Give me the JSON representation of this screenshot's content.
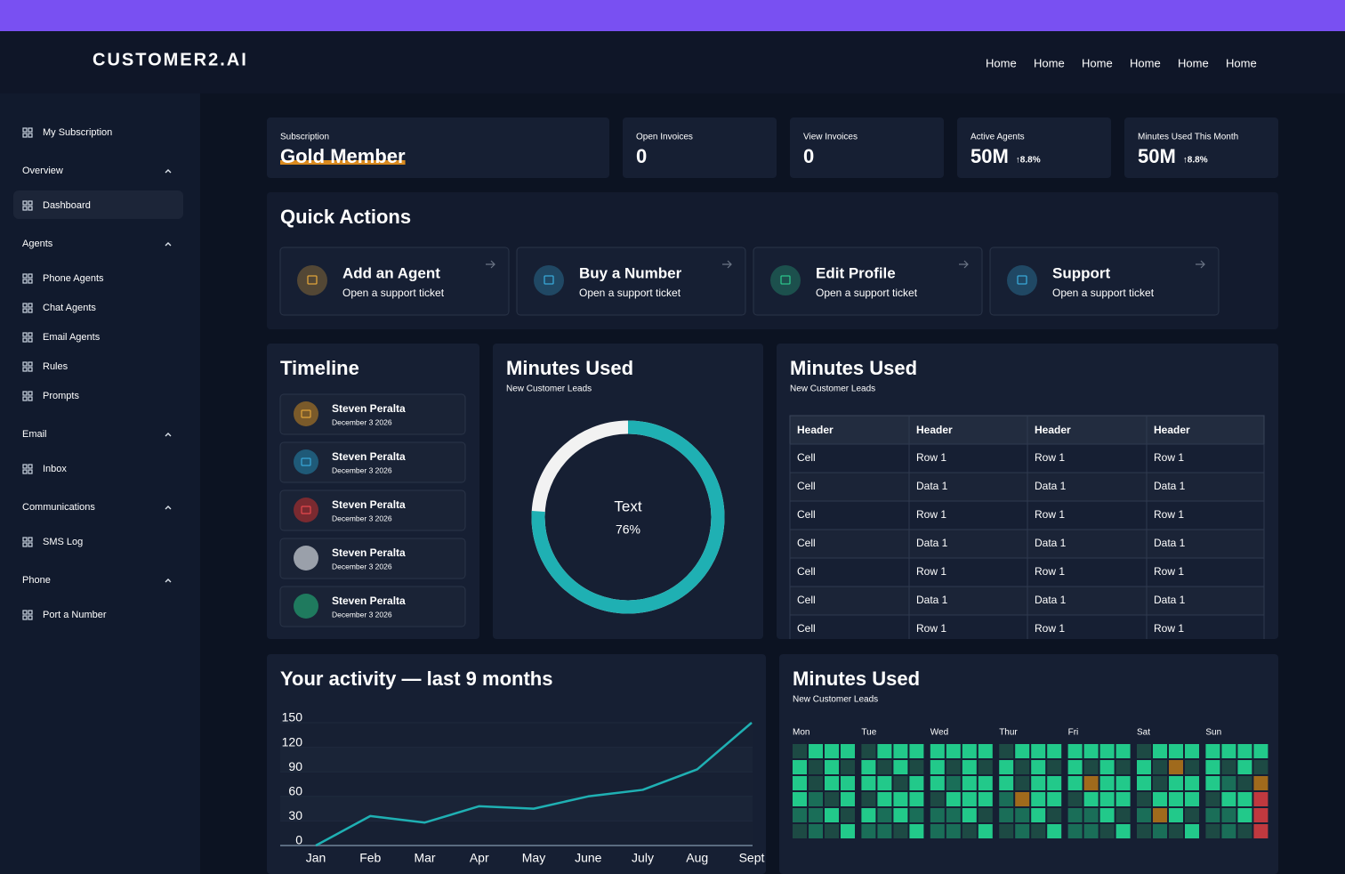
{
  "header": {
    "logo": "CUSTOMER2.AI",
    "nav": [
      "Home",
      "Home",
      "Home",
      "Home",
      "Home",
      "Home"
    ]
  },
  "sidebar": {
    "items": [
      {
        "label": "My Subscription",
        "kind": "link"
      },
      {
        "label": "Overview",
        "kind": "section"
      },
      {
        "label": "Dashboard",
        "kind": "link",
        "active": true
      },
      {
        "label": "Agents",
        "kind": "section"
      },
      {
        "label": "Phone Agents",
        "kind": "link"
      },
      {
        "label": "Chat Agents",
        "kind": "link"
      },
      {
        "label": "Email Agents",
        "kind": "link"
      },
      {
        "label": "Rules",
        "kind": "link"
      },
      {
        "label": "Prompts",
        "kind": "link"
      },
      {
        "label": "Email",
        "kind": "section"
      },
      {
        "label": "Inbox",
        "kind": "link"
      },
      {
        "label": "Communications",
        "kind": "section"
      },
      {
        "label": "SMS Log",
        "kind": "link"
      },
      {
        "label": "Phone",
        "kind": "section"
      },
      {
        "label": "Port a Number",
        "kind": "link"
      }
    ]
  },
  "stats": [
    {
      "label": "Subscription",
      "value": "Gold Member",
      "highlight": "#d98a1f"
    },
    {
      "label": "Open Invoices",
      "value": 0
    },
    {
      "label": "View Invoices",
      "value": 0
    },
    {
      "label": "Active Agents",
      "value": "50M",
      "delta": "↑8.8%",
      "delta_color": "#22c98a"
    },
    {
      "label": "Minutes Used This Month",
      "value": "50M",
      "delta": "↑8.8%",
      "delta_color": "#e5484d"
    }
  ],
  "quick_actions": {
    "title": "Quick Actions",
    "items": [
      {
        "title": "Add an Agent",
        "subtitle": "Open a support ticket",
        "color": "#e0a43a"
      },
      {
        "title": "Buy a Number",
        "subtitle": "Open a support ticket",
        "color": "#38a8d8"
      },
      {
        "title": "Edit Profile",
        "subtitle": "Open a support ticket",
        "color": "#2bc48a"
      },
      {
        "title": "Support",
        "subtitle": "Open a support ticket",
        "color": "#38a8d8"
      }
    ]
  },
  "timeline": {
    "title": "Timeline",
    "items": [
      {
        "name": "Steven Peralta",
        "date": "December 3 2026",
        "color": "#7a5a2a",
        "icon": "#e0a43a"
      },
      {
        "name": "Steven Peralta",
        "date": "December 3 2026",
        "color": "#1f5a78",
        "icon": "#38a8d8"
      },
      {
        "name": "Steven Peralta",
        "date": "December 3 2026",
        "color": "#7a2a30",
        "icon": "#e5484d"
      },
      {
        "name": "Steven Peralta",
        "date": "December 3 2026",
        "color": "#9aa0aa"
      },
      {
        "name": "Steven Peralta",
        "date": "December 3 2026",
        "color": "#1f7a5e"
      }
    ]
  },
  "donut": {
    "type": "pie",
    "title": "Minutes Used",
    "subtitle": "New Customer Leads",
    "center_label": "Text",
    "value": 76,
    "value_label": "76%",
    "color": "#1fb0b3",
    "rest_color": "#f2f2f2"
  },
  "table_card": {
    "title": "Minutes Used",
    "subtitle": "New Customer Leads",
    "columns": [
      "Header",
      "Header",
      "Header",
      "Header"
    ],
    "rows": [
      [
        "Cell",
        "Row 1",
        "Row 1",
        "Row 1"
      ],
      [
        "Cell",
        "Data 1",
        "Data 1",
        "Data 1"
      ],
      [
        "Cell",
        "Row 1",
        "Row 1",
        "Row 1"
      ],
      [
        "Cell",
        "Data 1",
        "Data 1",
        "Data 1"
      ],
      [
        "Cell",
        "Row 1",
        "Row 1",
        "Row 1"
      ],
      [
        "Cell",
        "Data 1",
        "Data 1",
        "Data 1"
      ],
      [
        "Cell",
        "Row 1",
        "Row 1",
        "Row 1"
      ]
    ]
  },
  "chart_data": {
    "type": "line",
    "title": "Your activity — last 9 months",
    "categories": [
      "Jan",
      "Feb",
      "Mar",
      "Apr",
      "May",
      "June",
      "July",
      "Aug",
      "Sept"
    ],
    "values": [
      0,
      36,
      28,
      48,
      45,
      60,
      68,
      93,
      150
    ],
    "color": "#1fb0b3",
    "ylim": [
      0,
      150
    ],
    "yticks": [
      0,
      30,
      60,
      90,
      120,
      150
    ],
    "grid": true
  },
  "heatmap": {
    "title": "Minutes Used",
    "subtitle": "New Customer Leads",
    "days": [
      "Mon",
      "Tue",
      "Wed",
      "Thur",
      "Fri",
      "Sat",
      "Sun"
    ],
    "colors": [
      "#1d4a44",
      "#1a6e58",
      "#22c98a",
      "#a06a1c",
      "#c0393f"
    ],
    "levels": [
      [
        [
          0,
          2,
          2,
          2
        ],
        [
          2,
          0,
          2,
          0
        ],
        [
          2,
          0,
          2,
          2
        ],
        [
          2,
          1,
          0,
          2
        ],
        [
          1,
          1,
          2,
          0
        ],
        [
          0,
          1,
          0,
          2
        ]
      ],
      [
        [
          0,
          2,
          2,
          2
        ],
        [
          2,
          0,
          2,
          0
        ],
        [
          2,
          2,
          0,
          2
        ],
        [
          0,
          2,
          2,
          2
        ],
        [
          2,
          1,
          2,
          1
        ],
        [
          1,
          1,
          0,
          2
        ]
      ],
      [
        [
          2,
          2,
          2,
          2
        ],
        [
          2,
          0,
          2,
          0
        ],
        [
          2,
          1,
          2,
          2
        ],
        [
          0,
          2,
          2,
          2
        ],
        [
          1,
          1,
          2,
          0
        ],
        [
          1,
          1,
          0,
          2
        ]
      ],
      [
        [
          0,
          2,
          2,
          2
        ],
        [
          2,
          0,
          2,
          0
        ],
        [
          2,
          0,
          2,
          2
        ],
        [
          1,
          3,
          2,
          2
        ],
        [
          1,
          1,
          2,
          0
        ],
        [
          0,
          1,
          0,
          2
        ]
      ],
      [
        [
          2,
          2,
          2,
          2
        ],
        [
          2,
          0,
          2,
          0
        ],
        [
          2,
          3,
          2,
          2
        ],
        [
          0,
          2,
          2,
          2
        ],
        [
          1,
          1,
          2,
          0
        ],
        [
          1,
          1,
          0,
          2
        ]
      ],
      [
        [
          0,
          2,
          2,
          2
        ],
        [
          2,
          0,
          3,
          0
        ],
        [
          2,
          0,
          2,
          2
        ],
        [
          0,
          2,
          2,
          2
        ],
        [
          1,
          3,
          2,
          0
        ],
        [
          0,
          1,
          0,
          2
        ]
      ],
      [
        [
          2,
          2,
          2,
          2
        ],
        [
          2,
          0,
          2,
          0
        ],
        [
          2,
          1,
          0,
          3
        ],
        [
          0,
          2,
          2,
          4
        ],
        [
          1,
          1,
          2,
          4
        ],
        [
          0,
          1,
          0,
          4
        ]
      ]
    ]
  }
}
